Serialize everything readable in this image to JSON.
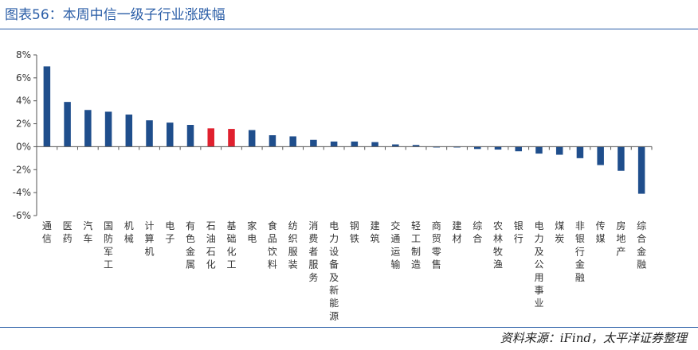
{
  "figure": {
    "title": "图表56：本周中信一级子行业涨跌幅",
    "source": "资料来源：iFind，太平洋证券整理"
  },
  "colors": {
    "bar": "#1f4e8c",
    "highlight": "#e0202e",
    "rule": "#2b5ea7"
  },
  "chart_data": {
    "type": "bar",
    "title": "",
    "xlabel": "",
    "ylabel": "",
    "ylim": [
      -6,
      8
    ],
    "yticks": [
      -6,
      -4,
      -2,
      0,
      2,
      4,
      6,
      8
    ],
    "ytick_labels": [
      "-6%",
      "-4%",
      "-2%",
      "0%",
      "2%",
      "4%",
      "6%",
      "8%"
    ],
    "grid": false,
    "legend": "none",
    "categories": [
      "通信",
      "医药",
      "汽车",
      "国防军工",
      "机械",
      "计算机",
      "电子",
      "有色金属",
      "石油石化",
      "基础化工",
      "家电",
      "食品饮料",
      "纺织服装",
      "消费者服务",
      "电力设备及新能源",
      "钢铁",
      "建筑",
      "交通运输",
      "轻工制造",
      "商贸零售",
      "建材",
      "综合",
      "农林牧渔",
      "银行",
      "电力及公用事业",
      "煤炭",
      "非银行金融",
      "传媒",
      "房地产",
      "综合金融"
    ],
    "values": [
      7.0,
      3.9,
      3.2,
      3.05,
      2.8,
      2.3,
      2.1,
      1.9,
      1.6,
      1.55,
      1.45,
      1.0,
      0.9,
      0.6,
      0.45,
      0.45,
      0.4,
      0.2,
      0.15,
      -0.05,
      -0.05,
      -0.2,
      -0.25,
      -0.4,
      -0.6,
      -0.7,
      -1.0,
      -1.6,
      -2.1,
      -4.1
    ],
    "highlight_categories": [
      "石油石化",
      "基础化工"
    ]
  }
}
